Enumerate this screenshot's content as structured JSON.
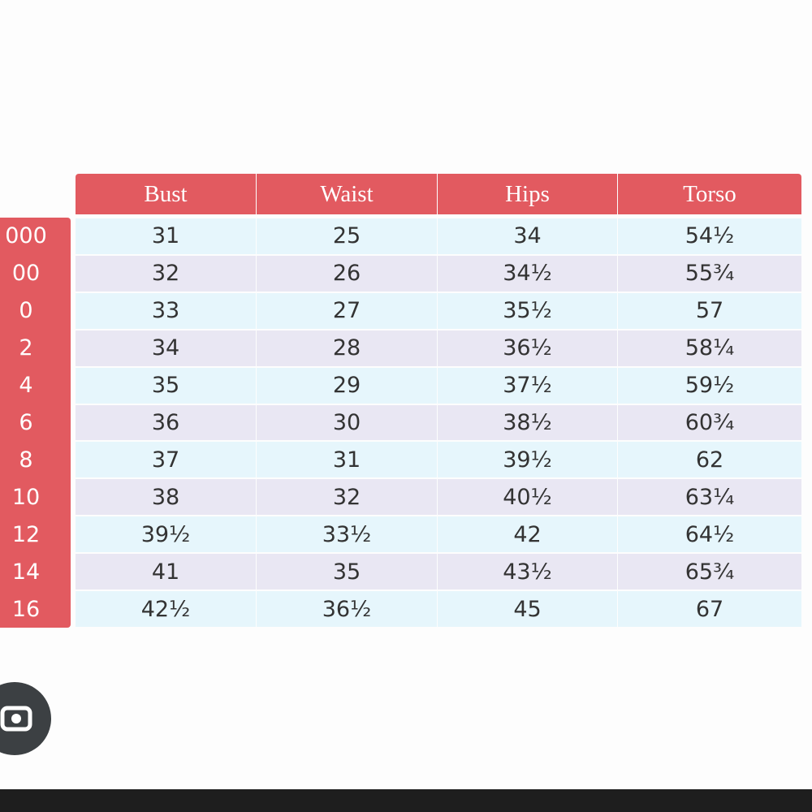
{
  "table": {
    "columns": [
      "Bust",
      "Waist",
      "Hips",
      "Torso"
    ],
    "rows": [
      {
        "label": "000",
        "cells": [
          "31",
          "25",
          "34",
          "54½"
        ]
      },
      {
        "label": "00",
        "cells": [
          "32",
          "26",
          "34½",
          "55¾"
        ]
      },
      {
        "label": "0",
        "cells": [
          "33",
          "27",
          "35½",
          "57"
        ]
      },
      {
        "label": "2",
        "cells": [
          "34",
          "28",
          "36½",
          "58¼"
        ]
      },
      {
        "label": "4",
        "cells": [
          "35",
          "29",
          "37½",
          "59½"
        ]
      },
      {
        "label": "6",
        "cells": [
          "36",
          "30",
          "38½",
          "60¾"
        ]
      },
      {
        "label": "8",
        "cells": [
          "37",
          "31",
          "39½",
          "62"
        ]
      },
      {
        "label": "10",
        "cells": [
          "38",
          "32",
          "40½",
          "63¼"
        ]
      },
      {
        "label": "12",
        "cells": [
          "39½",
          "33½",
          "42",
          "64½"
        ]
      },
      {
        "label": "14",
        "cells": [
          "41",
          "35",
          "43½",
          "65¾"
        ]
      },
      {
        "label": "16",
        "cells": [
          "42½",
          "36½",
          "45",
          "67"
        ]
      }
    ]
  }
}
